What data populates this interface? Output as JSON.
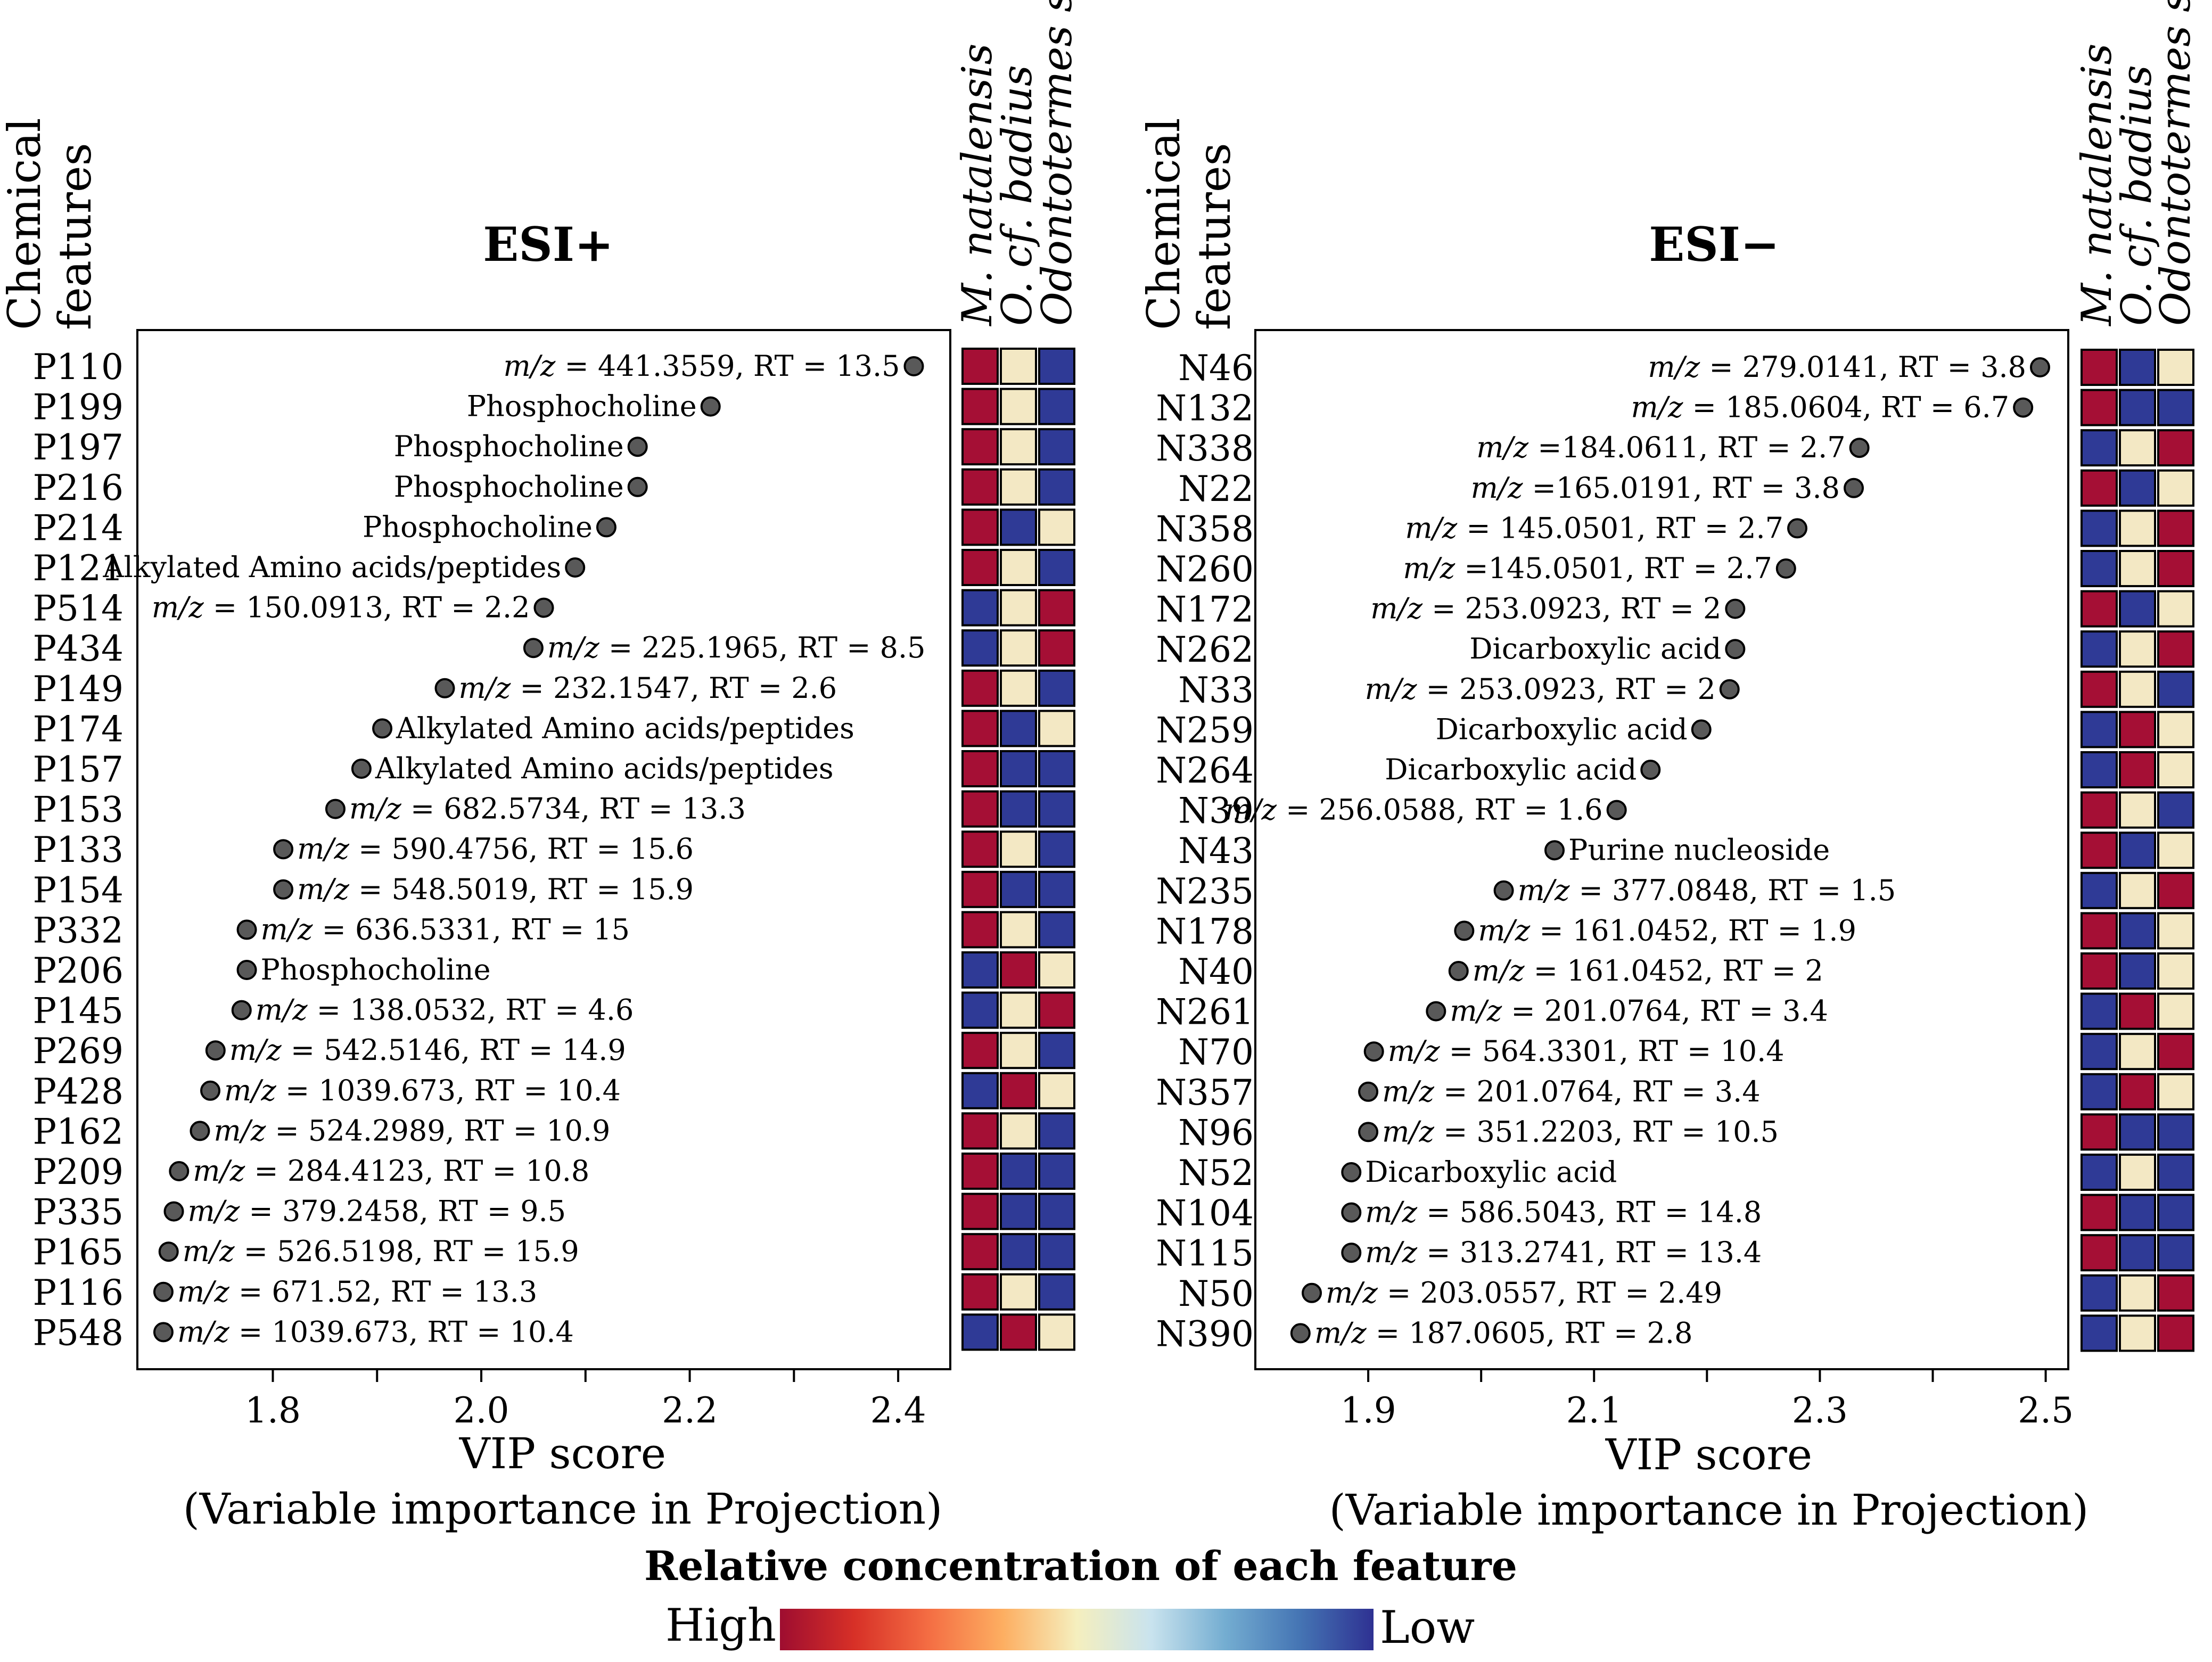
{
  "chart_data": [
    {
      "type": "scatter",
      "title": "ESI+",
      "feature_header": [
        "Chemical",
        "features"
      ],
      "xlabel": "VIP score",
      "xlabel_sub": "(Variable importance in Projection)",
      "xlim": [
        1.67,
        2.45
      ],
      "xticks": [
        "1.8",
        "2.0",
        "2.2",
        "2.4"
      ],
      "xtick_values": [
        1.8,
        2.0,
        2.2,
        2.4
      ],
      "species": [
        "M. natalensis",
        "O. cf. badius",
        "Odontotermes sp."
      ],
      "features": [
        {
          "id": "P110",
          "vip": 2.415,
          "label_pre": "m/z",
          "label_text": " = 441.3559, RT = 13.5",
          "side": "left",
          "heat": [
            "H",
            "M",
            "L"
          ]
        },
        {
          "id": "P199",
          "vip": 2.22,
          "label_pre": "",
          "label_text": "Phosphocholine",
          "side": "left",
          "heat": [
            "H",
            "M",
            "L"
          ]
        },
        {
          "id": "P197",
          "vip": 2.15,
          "label_pre": "",
          "label_text": "Phosphocholine",
          "side": "left",
          "heat": [
            "H",
            "M",
            "L"
          ]
        },
        {
          "id": "P216",
          "vip": 2.15,
          "label_pre": "",
          "label_text": "Phosphocholine",
          "side": "left",
          "heat": [
            "H",
            "M",
            "L"
          ]
        },
        {
          "id": "P214",
          "vip": 2.12,
          "label_pre": "",
          "label_text": "Phosphocholine",
          "side": "left",
          "heat": [
            "H",
            "L",
            "M"
          ]
        },
        {
          "id": "P121",
          "vip": 2.09,
          "label_pre": "",
          "label_text": "Alkylated Amino acids/peptides",
          "side": "left",
          "heat": [
            "H",
            "M",
            "L"
          ]
        },
        {
          "id": "P514",
          "vip": 2.06,
          "label_pre": "m/z",
          "label_text": " = 150.0913, RT = 2.2",
          "side": "left",
          "heat": [
            "L",
            "M",
            "H"
          ]
        },
        {
          "id": "P434",
          "vip": 2.05,
          "label_pre": "m/z",
          "label_text": " = 225.1965, RT = 8.5",
          "side": "right",
          "heat": [
            "L",
            "M",
            "H"
          ]
        },
        {
          "id": "P149",
          "vip": 1.965,
          "label_pre": "m/z",
          "label_text": " = 232.1547, RT = 2.6",
          "side": "right",
          "heat": [
            "H",
            "M",
            "L"
          ]
        },
        {
          "id": "P174",
          "vip": 1.905,
          "label_pre": "",
          "label_text": "Alkylated Amino acids/peptides",
          "side": "right",
          "heat": [
            "H",
            "L",
            "M"
          ]
        },
        {
          "id": "P157",
          "vip": 1.885,
          "label_pre": "",
          "label_text": "Alkylated Amino acids/peptides",
          "side": "right",
          "heat": [
            "H",
            "L",
            "L"
          ]
        },
        {
          "id": "P153",
          "vip": 1.86,
          "label_pre": "m/z",
          "label_text": " = 682.5734, RT = 13.3",
          "side": "right",
          "heat": [
            "H",
            "L",
            "L"
          ]
        },
        {
          "id": "P133",
          "vip": 1.81,
          "label_pre": "m/z",
          "label_text": " = 590.4756, RT = 15.6",
          "side": "right",
          "heat": [
            "H",
            "M",
            "L"
          ]
        },
        {
          "id": "P154",
          "vip": 1.81,
          "label_pre": "m/z",
          "label_text": " = 548.5019, RT = 15.9",
          "side": "right",
          "heat": [
            "H",
            "L",
            "L"
          ]
        },
        {
          "id": "P332",
          "vip": 1.775,
          "label_pre": "m/z",
          "label_text": " = 636.5331, RT = 15",
          "side": "right",
          "heat": [
            "H",
            "M",
            "L"
          ]
        },
        {
          "id": "P206",
          "vip": 1.775,
          "label_pre": "",
          "label_text": "Phosphocholine",
          "side": "right",
          "heat": [
            "L",
            "H",
            "M"
          ]
        },
        {
          "id": "P145",
          "vip": 1.77,
          "label_pre": "m/z",
          "label_text": " = 138.0532, RT = 4.6",
          "side": "right",
          "heat": [
            "L",
            "M",
            "H"
          ]
        },
        {
          "id": "P269",
          "vip": 1.745,
          "label_pre": "m/z",
          "label_text": " = 542.5146, RT = 14.9",
          "side": "right",
          "heat": [
            "H",
            "M",
            "L"
          ]
        },
        {
          "id": "P428",
          "vip": 1.74,
          "label_pre": "m/z",
          "label_text": " = 1039.673, RT = 10.4",
          "side": "right",
          "heat": [
            "L",
            "H",
            "M"
          ]
        },
        {
          "id": "P162",
          "vip": 1.73,
          "label_pre": "m/z",
          "label_text": " = 524.2989, RT = 10.9",
          "side": "right",
          "heat": [
            "H",
            "M",
            "L"
          ]
        },
        {
          "id": "P209",
          "vip": 1.71,
          "label_pre": "m/z",
          "label_text": " = 284.4123, RT = 10.8",
          "side": "right",
          "heat": [
            "H",
            "L",
            "L"
          ]
        },
        {
          "id": "P335",
          "vip": 1.705,
          "label_pre": "m/z",
          "label_text": " = 379.2458, RT = 9.5",
          "side": "right",
          "heat": [
            "H",
            "L",
            "L"
          ]
        },
        {
          "id": "P165",
          "vip": 1.7,
          "label_pre": "m/z",
          "label_text": " = 526.5198, RT = 15.9",
          "side": "right",
          "heat": [
            "H",
            "L",
            "L"
          ]
        },
        {
          "id": "P116",
          "vip": 1.695,
          "label_pre": "m/z",
          "label_text": " = 671.52, RT = 13.3",
          "side": "right",
          "heat": [
            "H",
            "M",
            "L"
          ]
        },
        {
          "id": "P548",
          "vip": 1.695,
          "label_pre": "m/z",
          "label_text": " = 1039.673, RT = 10.4",
          "side": "right",
          "heat": [
            "L",
            "H",
            "M"
          ]
        }
      ]
    },
    {
      "type": "scatter",
      "title": "ESI−",
      "feature_header": [
        "Chemical",
        "features"
      ],
      "xlabel": "VIP score",
      "xlabel_sub": "(Variable importance in Projection)",
      "xlim": [
        1.8,
        2.52
      ],
      "xticks": [
        "1.9",
        "2.1",
        "2.3",
        "2.5"
      ],
      "xtick_values": [
        1.9,
        2.1,
        2.3,
        2.5
      ],
      "species": [
        "M. natalensis",
        "O. cf. badius",
        "Odontotermes sp."
      ],
      "features": [
        {
          "id": "N46",
          "vip": 2.495,
          "label_pre": "m/z",
          "label_text": " = 279.0141, RT = 3.8",
          "side": "left",
          "heat": [
            "H",
            "L",
            "M"
          ]
        },
        {
          "id": "N132",
          "vip": 2.48,
          "label_pre": "m/z",
          "label_text": " = 185.0604, RT = 6.7",
          "side": "left",
          "heat": [
            "H",
            "L",
            "L"
          ]
        },
        {
          "id": "N338",
          "vip": 2.335,
          "label_pre": "m/z",
          "label_text": " =184.0611, RT = 2.7",
          "side": "left",
          "heat": [
            "L",
            "M",
            "H"
          ]
        },
        {
          "id": "N22",
          "vip": 2.33,
          "label_pre": "m/z",
          "label_text": " =165.0191, RT = 3.8",
          "side": "left",
          "heat": [
            "H",
            "L",
            "M"
          ]
        },
        {
          "id": "N358",
          "vip": 2.28,
          "label_pre": "m/z",
          "label_text": " = 145.0501, RT = 2.7",
          "side": "left",
          "heat": [
            "L",
            "M",
            "H"
          ]
        },
        {
          "id": "N260",
          "vip": 2.27,
          "label_pre": "m/z",
          "label_text": " =145.0501, RT = 2.7",
          "side": "left",
          "heat": [
            "L",
            "M",
            "H"
          ]
        },
        {
          "id": "N172",
          "vip": 2.225,
          "label_pre": "m/z",
          "label_text": " = 253.0923, RT = 2",
          "side": "left",
          "heat": [
            "H",
            "L",
            "M"
          ]
        },
        {
          "id": "N262",
          "vip": 2.225,
          "label_pre": "",
          "label_text": "Dicarboxylic acid",
          "side": "left",
          "heat": [
            "L",
            "M",
            "H"
          ]
        },
        {
          "id": "N33",
          "vip": 2.22,
          "label_pre": "m/z",
          "label_text": " = 253.0923, RT = 2",
          "side": "left",
          "heat": [
            "H",
            "M",
            "L"
          ]
        },
        {
          "id": "N259",
          "vip": 2.195,
          "label_pre": "",
          "label_text": "Dicarboxylic acid",
          "side": "left",
          "heat": [
            "L",
            "H",
            "M"
          ]
        },
        {
          "id": "N264",
          "vip": 2.15,
          "label_pre": "",
          "label_text": "Dicarboxylic acid",
          "side": "left",
          "heat": [
            "L",
            "H",
            "M"
          ]
        },
        {
          "id": "N39",
          "vip": 2.12,
          "label_pre": "m/z",
          "label_text": " = 256.0588, RT = 1.6",
          "side": "left",
          "heat": [
            "H",
            "M",
            "L"
          ]
        },
        {
          "id": "N43",
          "vip": 2.065,
          "label_pre": "",
          "label_text": "Purine nucleoside",
          "side": "right",
          "heat": [
            "H",
            "L",
            "M"
          ]
        },
        {
          "id": "N235",
          "vip": 2.02,
          "label_pre": "m/z",
          "label_text": " = 377.0848, RT = 1.5",
          "side": "right",
          "heat": [
            "L",
            "M",
            "H"
          ]
        },
        {
          "id": "N178",
          "vip": 1.985,
          "label_pre": "m/z",
          "label_text": " = 161.0452, RT = 1.9",
          "side": "right",
          "heat": [
            "H",
            "L",
            "M"
          ]
        },
        {
          "id": "N40",
          "vip": 1.98,
          "label_pre": "m/z",
          "label_text": " = 161.0452, RT = 2",
          "side": "right",
          "heat": [
            "H",
            "L",
            "M"
          ]
        },
        {
          "id": "N261",
          "vip": 1.96,
          "label_pre": "m/z",
          "label_text": " = 201.0764, RT = 3.4",
          "side": "right",
          "heat": [
            "L",
            "H",
            "M"
          ]
        },
        {
          "id": "N70",
          "vip": 1.905,
          "label_pre": "m/z",
          "label_text": " = 564.3301, RT = 10.4",
          "side": "right",
          "heat": [
            "L",
            "M",
            "H"
          ]
        },
        {
          "id": "N357",
          "vip": 1.9,
          "label_pre": "m/z",
          "label_text": " = 201.0764, RT = 3.4",
          "side": "right",
          "heat": [
            "L",
            "H",
            "M"
          ]
        },
        {
          "id": "N96",
          "vip": 1.9,
          "label_pre": "m/z",
          "label_text": " = 351.2203, RT = 10.5",
          "side": "right",
          "heat": [
            "H",
            "L",
            "L"
          ]
        },
        {
          "id": "N52",
          "vip": 1.885,
          "label_pre": "",
          "label_text": "Dicarboxylic acid",
          "side": "right",
          "heat": [
            "L",
            "M",
            "L"
          ]
        },
        {
          "id": "N104",
          "vip": 1.885,
          "label_pre": "m/z",
          "label_text": " = 586.5043, RT = 14.8",
          "side": "right",
          "heat": [
            "H",
            "L",
            "L"
          ]
        },
        {
          "id": "N115",
          "vip": 1.885,
          "label_pre": "m/z",
          "label_text": " = 313.2741, RT = 13.4",
          "side": "right",
          "heat": [
            "H",
            "L",
            "L"
          ]
        },
        {
          "id": "N50",
          "vip": 1.85,
          "label_pre": "m/z",
          "label_text": " = 203.0557, RT = 2.49",
          "side": "right",
          "heat": [
            "L",
            "M",
            "H"
          ]
        },
        {
          "id": "N390",
          "vip": 1.84,
          "label_pre": "m/z",
          "label_text": " = 187.0605, RT = 2.8",
          "side": "right",
          "heat": [
            "L",
            "M",
            "H"
          ]
        }
      ]
    }
  ],
  "legend": {
    "title": "Relative concentration of each feature",
    "high_label": "High",
    "low_label": "Low",
    "gradient_colors": [
      "#9e0d30",
      "#d73027",
      "#f46d43",
      "#fdae61",
      "#f5efbe",
      "#c9e3ee",
      "#74add1",
      "#4575b4",
      "#2e3192"
    ]
  },
  "heat_colors": {
    "H": "#a50f35",
    "M": "#f3e8c4",
    "L": "#2f3a96"
  }
}
